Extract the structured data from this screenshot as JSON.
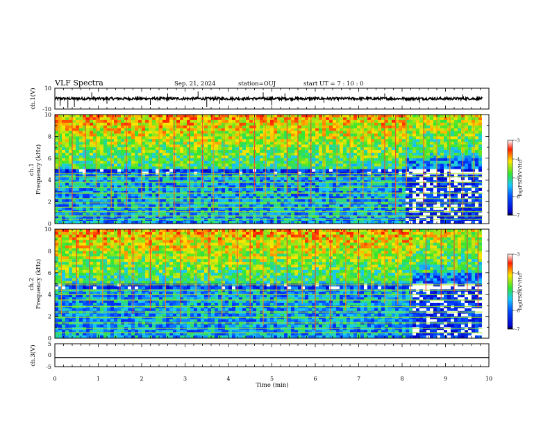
{
  "header": {
    "title": "VLF Spectra",
    "date": "Sep. 21, 2024",
    "station": "station=OUJ",
    "start_ut": "start  UT =   7 : 10 : 0"
  },
  "colors": {
    "spec_low": "#0000c8",
    "spec_mid": "#19c8ff",
    "spec_green": "#32e632",
    "spec_high": "#ffe600",
    "spec_top": "#ff1e00"
  },
  "chart_data": [
    {
      "type": "line",
      "name": "ch1-waveform",
      "ylabel": "ch.1(V)",
      "ylim": [
        -10,
        10
      ],
      "y_ticks": [
        "10",
        "-10"
      ],
      "xlim": [
        0,
        10
      ],
      "baseline": 0,
      "spikes": [
        {
          "x": 0.12,
          "y": -7
        },
        {
          "x": 0.3,
          "y": -9
        },
        {
          "x": 0.45,
          "y": -8
        },
        {
          "x": 0.85,
          "y": 6
        },
        {
          "x": 1.2,
          "y": -5
        },
        {
          "x": 2.2,
          "y": -6
        },
        {
          "x": 2.6,
          "y": 5
        },
        {
          "x": 3.3,
          "y": 7
        },
        {
          "x": 3.5,
          "y": -8
        },
        {
          "x": 3.8,
          "y": -5
        },
        {
          "x": 4.8,
          "y": 6
        },
        {
          "x": 5.0,
          "y": -6
        },
        {
          "x": 5.3,
          "y": 5
        },
        {
          "x": 6.2,
          "y": -4
        },
        {
          "x": 7.6,
          "y": 5
        },
        {
          "x": 8.4,
          "y": -4
        },
        {
          "x": 9.4,
          "y": 4
        }
      ]
    },
    {
      "type": "heatmap",
      "name": "ch1-spectrogram",
      "ylabel": "ch.1 Frequency (kHz)",
      "ylabel_line1": "ch.1",
      "ylabel_line2": "Frequency  (kHz)",
      "ylim": [
        0,
        10
      ],
      "y_ticks": [
        "0",
        "2",
        "4",
        "6",
        "8",
        "10"
      ],
      "xlim": [
        0,
        10
      ],
      "colorbar": {
        "label": "log(PSD)(V²/Hz)",
        "range": [
          -7,
          -3
        ],
        "ticks": [
          "-3",
          "-4",
          "-5",
          "-6",
          "-7"
        ]
      },
      "bands_khz": [
        0.4,
        0.7,
        1.1,
        1.5,
        1.9,
        2.3,
        2.8,
        3.3,
        3.8,
        4.3,
        4.6
      ],
      "impulses_min": [
        0.1,
        0.4,
        0.7,
        0.95,
        1.3,
        1.65,
        2.0,
        2.4,
        2.75,
        3.1,
        3.4,
        3.65,
        3.9,
        4.25,
        4.6,
        4.85,
        5.05,
        5.35,
        5.6,
        5.9,
        6.2,
        6.5,
        6.8,
        7.1,
        7.3,
        7.6,
        7.85,
        8.1,
        8.5,
        8.8,
        9.1,
        9.4,
        9.65
      ],
      "quiet_region_min": [
        8.1,
        9.8
      ]
    },
    {
      "type": "heatmap",
      "name": "ch2-spectrogram",
      "ylabel": "ch.2 Frequency (kHz)",
      "ylabel_line1": "ch.2",
      "ylabel_line2": "Frequency  (kHz)",
      "ylim": [
        0,
        10
      ],
      "y_ticks": [
        "0",
        "2",
        "4",
        "6",
        "8",
        "10"
      ],
      "xlim": [
        0,
        10
      ],
      "colorbar": {
        "label": "log(PSD)(V²/Hz)",
        "range": [
          -7,
          -3
        ],
        "ticks": [
          "-3",
          "-4",
          "-5",
          "-6",
          "-7"
        ]
      },
      "bands_khz": [
        0.5,
        0.9,
        1.4,
        1.9,
        2.4,
        2.9,
        3.5,
        4.0,
        4.4,
        4.9
      ],
      "impulses_min": [
        0.15,
        0.5,
        0.8,
        1.1,
        1.5,
        1.8,
        2.2,
        2.55,
        2.9,
        3.25,
        3.55,
        3.85,
        4.2,
        4.5,
        4.8,
        5.1,
        5.35,
        5.7,
        6.0,
        6.35,
        6.7,
        7.0,
        7.3,
        7.6,
        7.9,
        8.2,
        8.55,
        8.9,
        9.2,
        9.5,
        9.75
      ],
      "quiet_region_min": [
        8.2,
        9.8
      ]
    },
    {
      "type": "line",
      "name": "ch3-waveform",
      "ylabel": "ch.3(V)",
      "ylim": [
        -5,
        5
      ],
      "y_ticks": [
        "5",
        "0",
        "-5"
      ],
      "xlim": [
        0,
        10
      ],
      "baseline": -1
    }
  ],
  "x_axis": {
    "label": "Time  (min)",
    "ticks": [
      "0",
      "1",
      "2",
      "3",
      "4",
      "5",
      "6",
      "7",
      "8",
      "9",
      "10"
    ]
  }
}
